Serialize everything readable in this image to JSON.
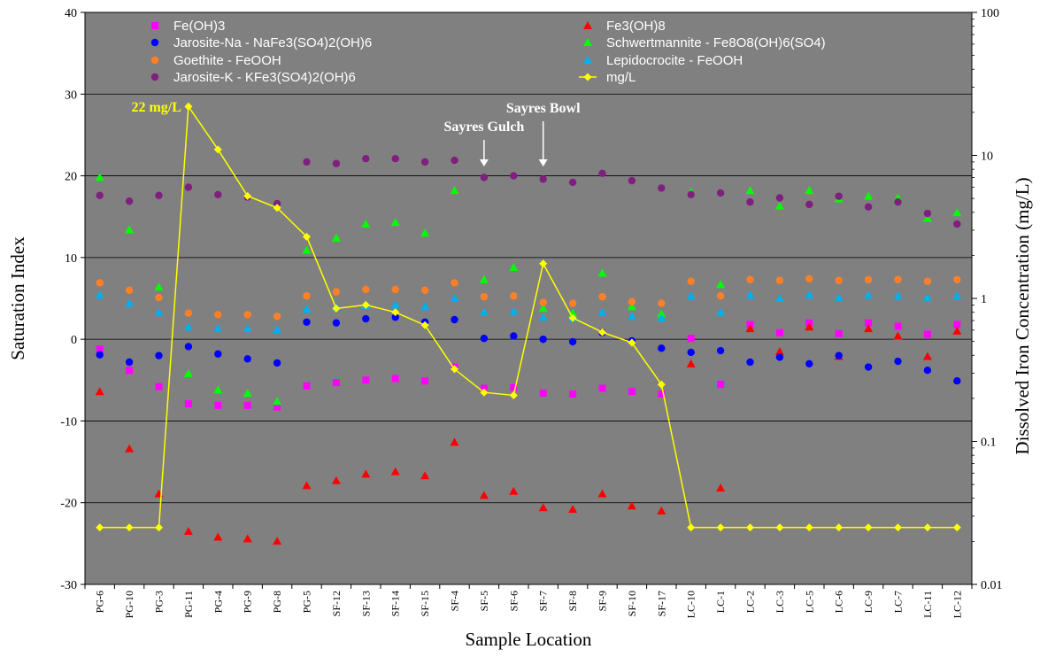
{
  "chart_data": {
    "type": "scatter",
    "xlabel": "Sample Location",
    "ylabel": "Saturation Index",
    "y2label": "Dissolved Iron Concentration (mg/L)",
    "ylim": [
      -30,
      40
    ],
    "y_ticks": [
      "-30",
      "-20",
      "-10",
      "0",
      "10",
      "20",
      "30",
      "40"
    ],
    "y2lim": [
      0.01,
      100
    ],
    "y2_scale": "log",
    "y2_ticks": [
      "0.01",
      "0.1",
      "1",
      "10",
      "100"
    ],
    "grid": "horizontal",
    "plot_background": "#808080",
    "legend_position": "top",
    "categories": [
      "PG-6",
      "PG-10",
      "PG-3",
      "PG-11",
      "PG-4",
      "PG-9",
      "PG-8",
      "PG-5",
      "SF-12",
      "SF-13",
      "SF-14",
      "SF-15",
      "SF-4",
      "SF-5",
      "SF-6",
      "SF-7",
      "SF-8",
      "SF-9",
      "SF-10",
      "SF-17",
      "LC-10",
      "LC-1",
      "LC-2",
      "LC-3",
      "LC-5",
      "LC-6",
      "LC-9",
      "LC-7",
      "LC-11",
      "LC-12"
    ],
    "series": [
      {
        "name": "Fe(OH)3",
        "color": "#ff00ff",
        "marker": "square",
        "axis": "left",
        "values": [
          -1.2,
          -3.8,
          -5.8,
          -7.9,
          -8.1,
          -8.1,
          -8.3,
          -5.7,
          -5.3,
          -5.0,
          -4.8,
          -5.1,
          -3.4,
          -6.0,
          -5.9,
          -6.6,
          -6.7,
          -6.0,
          -6.4,
          -6.7,
          0.1,
          -5.5,
          1.8,
          0.8,
          2.0,
          0.7,
          2.0,
          1.6,
          0.6,
          1.8
        ]
      },
      {
        "name": "Fe3(OH)8",
        "color": "#ff0000",
        "marker": "triangle",
        "axis": "left",
        "values": [
          -6.4,
          -13.4,
          -18.9,
          -23.5,
          -24.2,
          -24.4,
          -24.7,
          -17.9,
          -17.3,
          -16.5,
          -16.2,
          -16.7,
          -12.6,
          -19.1,
          -18.6,
          -20.6,
          -20.8,
          -18.9,
          -20.4,
          -21.0,
          -3.0,
          -18.2,
          1.3,
          -1.5,
          1.5,
          -2.1,
          1.3,
          0.4,
          -2.1,
          1.0
        ]
      },
      {
        "name": "Jarosite-Na - NaFe3(SO4)2(OH)6",
        "color": "#0000ff",
        "marker": "circle",
        "axis": "left",
        "values": [
          -1.9,
          -2.8,
          -2.0,
          -0.9,
          -1.8,
          -2.4,
          -2.9,
          2.1,
          2.0,
          2.5,
          2.7,
          2.1,
          2.4,
          0.1,
          0.4,
          0.0,
          -0.3,
          0.8,
          -0.2,
          -1.1,
          -1.6,
          -1.4,
          -2.8,
          -2.2,
          -3.0,
          -2.0,
          -3.4,
          -2.7,
          -3.8,
          -5.1
        ]
      },
      {
        "name": "Schwertmannite - Fe8O8(OH)6(SO4)",
        "color": "#00ff00",
        "marker": "triangle",
        "axis": "left",
        "values": [
          19.8,
          13.4,
          6.4,
          -4.2,
          -6.2,
          -6.6,
          -7.6,
          10.9,
          12.4,
          14.1,
          14.3,
          13.0,
          18.2,
          7.3,
          8.8,
          3.8,
          3.2,
          8.1,
          4.0,
          3.1,
          18.0,
          6.7,
          18.2,
          16.3,
          18.2,
          17.2,
          17.5,
          17.3,
          14.8,
          15.5
        ]
      },
      {
        "name": "Goethite - FeOOH",
        "color": "#ff7f27",
        "marker": "circle",
        "axis": "left",
        "values": [
          6.9,
          6.0,
          5.1,
          3.2,
          3.0,
          3.0,
          2.8,
          5.3,
          5.8,
          6.1,
          6.1,
          6.0,
          6.9,
          5.2,
          5.3,
          4.5,
          4.4,
          5.2,
          4.6,
          4.4,
          7.1,
          5.3,
          7.3,
          7.2,
          7.4,
          7.2,
          7.3,
          7.3,
          7.1,
          7.3
        ]
      },
      {
        "name": "Lepidocrocite - FeOOH",
        "color": "#00b0f0",
        "marker": "triangle",
        "axis": "left",
        "values": [
          5.4,
          4.4,
          3.3,
          1.5,
          1.3,
          1.3,
          1.2,
          3.7,
          3.9,
          4.1,
          4.2,
          4.0,
          5.0,
          3.3,
          3.4,
          2.7,
          2.6,
          3.3,
          2.8,
          2.6,
          5.3,
          3.3,
          5.4,
          5.0,
          5.4,
          5.1,
          5.4,
          5.3,
          5.1,
          5.3
        ]
      },
      {
        "name": "Jarosite-K - KFe3(SO4)2(OH)6",
        "color": "#7f1f7f",
        "marker": "circle",
        "axis": "left",
        "values": [
          17.6,
          16.9,
          17.6,
          18.6,
          17.7,
          17.4,
          16.6,
          21.7,
          21.5,
          22.1,
          22.1,
          21.7,
          21.9,
          19.8,
          20.0,
          19.6,
          19.2,
          20.3,
          19.4,
          18.5,
          17.7,
          17.9,
          16.8,
          17.3,
          16.5,
          17.5,
          16.2,
          16.8,
          15.4,
          14.1
        ]
      },
      {
        "name": "mg/L",
        "color": "#ffff00",
        "marker": "diamond",
        "axis": "right",
        "line": true,
        "values": [
          0.025,
          0.025,
          0.025,
          22,
          11,
          5.2,
          4.3,
          2.7,
          0.85,
          0.9,
          0.8,
          0.65,
          0.32,
          0.22,
          0.21,
          1.75,
          0.73,
          0.58,
          0.49,
          0.25,
          0.025,
          0.025,
          0.025,
          0.025,
          0.025,
          0.025,
          0.025,
          0.025,
          0.025,
          0.025
        ]
      }
    ],
    "annotations": [
      {
        "text": "22 mg/L",
        "color": "#ffff00",
        "category": "PG-11",
        "value": 22,
        "axis": "right",
        "arrow": false
      },
      {
        "text": "Sayres Gulch",
        "color": "#ffffff",
        "category": "SF-5",
        "arrow": true
      },
      {
        "text": "Sayres Bowl",
        "color": "#ffffff",
        "category": "SF-7",
        "arrow": true
      }
    ]
  }
}
